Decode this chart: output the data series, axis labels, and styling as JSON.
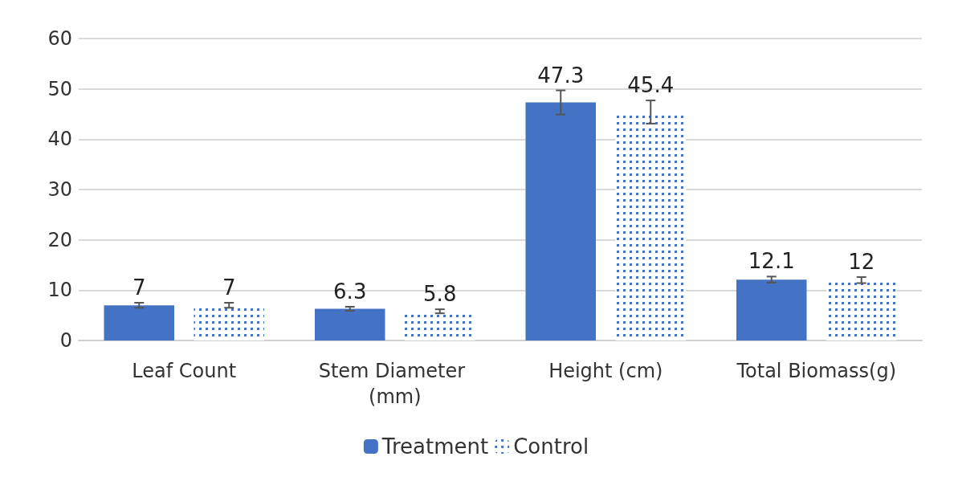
{
  "chart_data": {
    "type": "bar",
    "categories": [
      "Leaf Count",
      "Stem Diameter (mm)",
      "Height (cm)",
      "Total Biomass(g)"
    ],
    "series": [
      {
        "name": "Treatment",
        "color": "#4472c4",
        "values": [
          7,
          6.3,
          47.3,
          12.1
        ],
        "errors": [
          0.5,
          0.4,
          2.4,
          0.6
        ]
      },
      {
        "name": "Control",
        "color": "#4472c4",
        "values": [
          7,
          5.8,
          45.4,
          12
        ],
        "errors": [
          0.5,
          0.4,
          2.3,
          0.6
        ]
      }
    ],
    "ylim": [
      0,
      60
    ],
    "yticks": [
      0,
      10,
      20,
      30,
      40,
      50,
      60
    ],
    "grid": "y",
    "legend": "bottom",
    "data_labels": true
  }
}
